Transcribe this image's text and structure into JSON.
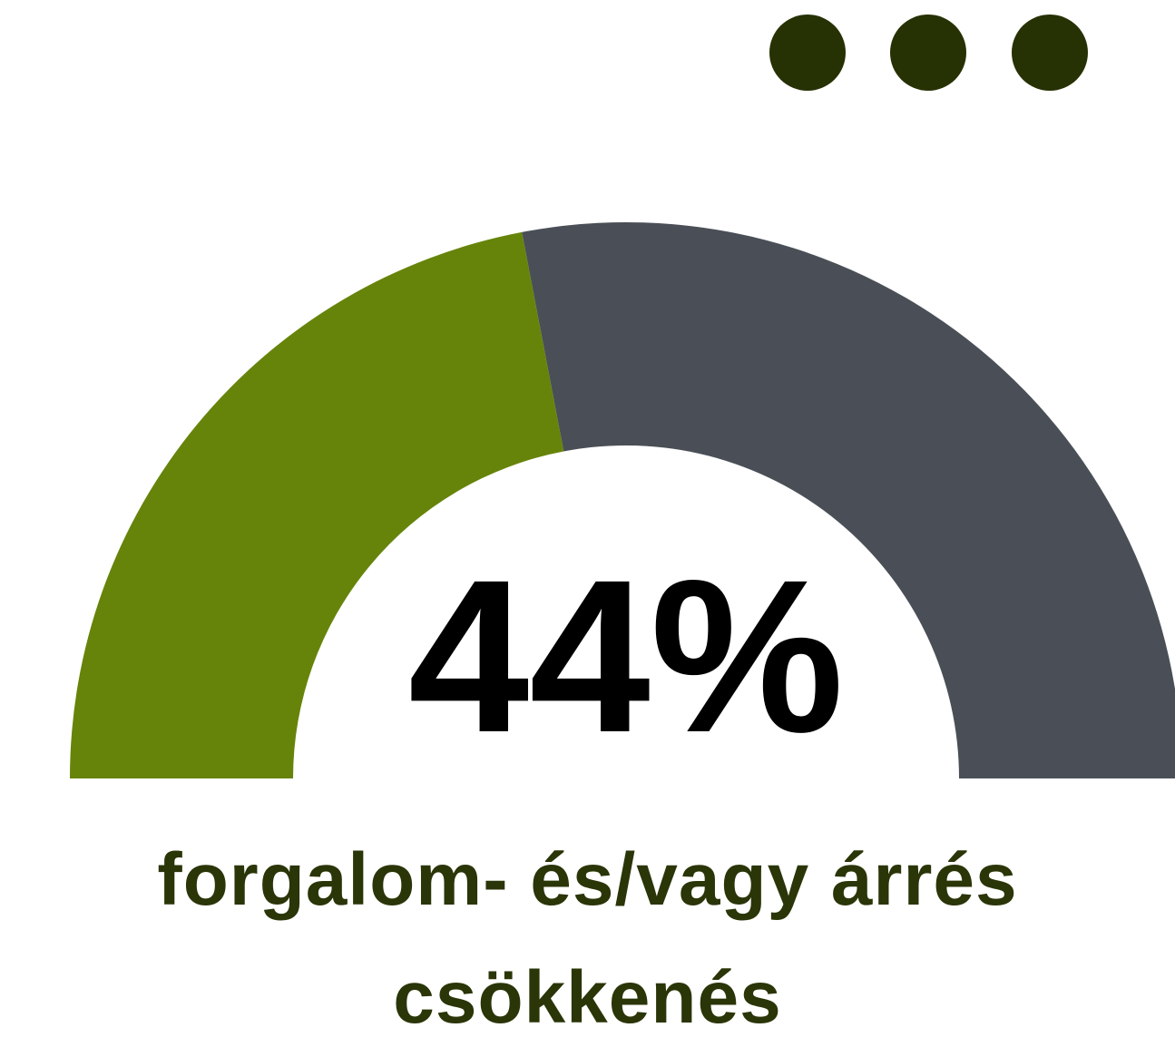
{
  "chart_data": {
    "type": "gauge",
    "values": [
      44
    ],
    "value_labels": [
      "44%"
    ],
    "ylim": [
      0,
      100
    ],
    "color": "#66840a",
    "track_color": "#4a4f57",
    "caption": "forgalom- és/vagy árrés csökkenés"
  }
}
